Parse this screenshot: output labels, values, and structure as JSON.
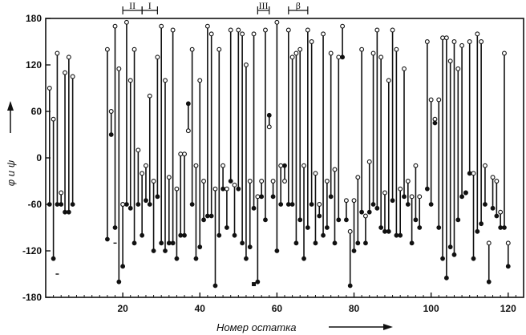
{
  "chart_data": {
    "type": "scatter",
    "title": "",
    "xlabel": "Номер остатка",
    "ylabel": "φ и ψ",
    "xlim": [
      0,
      124
    ],
    "ylim": [
      -180,
      180
    ],
    "x_ticks": [
      20,
      40,
      60,
      80,
      100,
      120
    ],
    "y_ticks": [
      180,
      120,
      60,
      0,
      -60,
      -120,
      -180
    ],
    "grid": false,
    "legend": "none",
    "series": [
      {
        "marker": "open circle",
        "values": []
      },
      {
        "marker": "filled circle",
        "values": []
      }
    ],
    "residues": [
      {
        "x": 1,
        "psi": 90,
        "phi": -60
      },
      {
        "x": 2,
        "psi": 50,
        "phi": -130
      },
      {
        "x": 3,
        "psi": 135,
        "phi": -60
      },
      {
        "x": 4,
        "psi": -45,
        "phi": -60
      },
      {
        "x": 5,
        "psi": 110,
        "phi": -70
      },
      {
        "x": 6,
        "psi": 130,
        "phi": -70
      },
      {
        "x": 7,
        "psi": 105,
        "phi": -60
      },
      {
        "x": 16,
        "psi": 140,
        "phi": -105
      },
      {
        "x": 17,
        "psi": 60,
        "phi": 30
      },
      {
        "x": 18,
        "psi": 170,
        "phi": -90
      },
      {
        "x": 19,
        "psi": 115,
        "phi": -160
      },
      {
        "x": 20,
        "psi": -60,
        "phi": -140
      },
      {
        "x": 21,
        "psi": 175,
        "phi": -60
      },
      {
        "x": 22,
        "psi": 100,
        "phi": -65
      },
      {
        "x": 23,
        "psi": 140,
        "phi": -110
      },
      {
        "x": 24,
        "psi": 10,
        "phi": -60
      },
      {
        "x": 25,
        "psi": -20,
        "phi": -100
      },
      {
        "x": 26,
        "psi": -10,
        "phi": -55
      },
      {
        "x": 27,
        "psi": 80,
        "phi": -60
      },
      {
        "x": 28,
        "psi": -30,
        "phi": -120
      },
      {
        "x": 29,
        "psi": 130,
        "phi": -50
      },
      {
        "x": 30,
        "psi": 170,
        "phi": -110
      },
      {
        "x": 31,
        "psi": 100,
        "phi": -120
      },
      {
        "x": 32,
        "psi": -25,
        "phi": -110
      },
      {
        "x": 33,
        "psi": 165,
        "phi": -110
      },
      {
        "x": 34,
        "psi": -40,
        "phi": -130
      },
      {
        "x": 35,
        "psi": 5,
        "phi": -100
      },
      {
        "x": 36,
        "psi": 5,
        "phi": -100
      },
      {
        "x": 37,
        "psi": 35,
        "phi": 70
      },
      {
        "x": 38,
        "psi": 140,
        "phi": -60
      },
      {
        "x": 39,
        "psi": -10,
        "phi": -130
      },
      {
        "x": 40,
        "psi": 100,
        "phi": -115
      },
      {
        "x": 41,
        "psi": -30,
        "phi": -80
      },
      {
        "x": 42,
        "psi": 170,
        "phi": -75
      },
      {
        "x": 43,
        "psi": 160,
        "phi": -75
      },
      {
        "x": 44,
        "psi": -40,
        "phi": -165
      },
      {
        "x": 45,
        "psi": 140,
        "phi": -100
      },
      {
        "x": 46,
        "psi": -10,
        "phi": -40
      },
      {
        "x": 47,
        "psi": -40,
        "phi": -90
      },
      {
        "x": 48,
        "psi": 165,
        "phi": -30
      },
      {
        "x": 49,
        "psi": -35,
        "phi": -100
      },
      {
        "x": 50,
        "psi": 165,
        "phi": -40
      },
      {
        "x": 51,
        "psi": 160,
        "phi": -110
      },
      {
        "x": 52,
        "psi": 120,
        "phi": -130
      },
      {
        "x": 53,
        "psi": -30,
        "phi": -115
      },
      {
        "x": 54,
        "psi": 160,
        "phi": -65
      },
      {
        "x": 55,
        "psi": -50,
        "phi": -160
      },
      {
        "x": 56,
        "psi": -30,
        "phi": -50
      },
      {
        "x": 57,
        "psi": 165,
        "phi": -80
      },
      {
        "x": 58,
        "psi": 40,
        "phi": 55
      },
      {
        "x": 59,
        "psi": -30,
        "phi": -50
      },
      {
        "x": 60,
        "psi": 175,
        "phi": -120
      },
      {
        "x": 61,
        "psi": -10,
        "phi": -60
      },
      {
        "x": 62,
        "psi": -30,
        "phi": -10
      },
      {
        "x": 63,
        "psi": 165,
        "phi": -60
      },
      {
        "x": 64,
        "psi": 130,
        "phi": -60
      },
      {
        "x": 65,
        "psi": 135,
        "phi": -110
      },
      {
        "x": 66,
        "psi": 140,
        "phi": -80
      },
      {
        "x": 67,
        "psi": -10,
        "phi": -130
      },
      {
        "x": 68,
        "psi": 165,
        "phi": -90
      },
      {
        "x": 69,
        "psi": 150,
        "phi": -60
      },
      {
        "x": 70,
        "psi": -20,
        "phi": -110
      },
      {
        "x": 71,
        "psi": -60,
        "phi": -75
      },
      {
        "x": 72,
        "psi": 160,
        "phi": -100
      },
      {
        "x": 73,
        "psi": -30,
        "phi": -90
      },
      {
        "x": 74,
        "psi": 135,
        "phi": -50
      },
      {
        "x": 75,
        "psi": -15,
        "phi": -110
      },
      {
        "x": 76,
        "psi": 130,
        "phi": -80
      },
      {
        "x": 77,
        "psi": 170,
        "phi": 130
      },
      {
        "x": 78,
        "psi": -55,
        "phi": -80
      },
      {
        "x": 79,
        "psi": -95,
        "phi": -165
      },
      {
        "x": 80,
        "psi": -55,
        "phi": -120
      },
      {
        "x": 81,
        "psi": -25,
        "phi": -110
      },
      {
        "x": 82,
        "psi": 140,
        "phi": -70
      },
      {
        "x": 83,
        "psi": -75,
        "phi": -110
      },
      {
        "x": 84,
        "psi": -5,
        "phi": -70
      },
      {
        "x": 85,
        "psi": 135,
        "phi": -60
      },
      {
        "x": 86,
        "psi": 165,
        "phi": -65
      },
      {
        "x": 87,
        "psi": 130,
        "phi": -90
      },
      {
        "x": 88,
        "psi": -45,
        "phi": -95
      },
      {
        "x": 89,
        "psi": 100,
        "phi": -95
      },
      {
        "x": 90,
        "psi": 165,
        "phi": -55
      },
      {
        "x": 91,
        "psi": 140,
        "phi": -100
      },
      {
        "x": 92,
        "psi": -40,
        "phi": -100
      },
      {
        "x": 93,
        "psi": 115,
        "phi": -50
      },
      {
        "x": 94,
        "psi": -30,
        "phi": -60
      },
      {
        "x": 95,
        "psi": -50,
        "phi": -110
      },
      {
        "x": 96,
        "psi": -10,
        "phi": -80
      },
      {
        "x": 97,
        "psi": -50,
        "phi": -90
      },
      {
        "x": 99,
        "psi": 150,
        "phi": -40
      },
      {
        "x": 100,
        "psi": 75,
        "phi": -60
      },
      {
        "x": 101,
        "psi": 50,
        "phi": 45
      },
      {
        "x": 102,
        "psi": 75,
        "phi": -90
      },
      {
        "x": 103,
        "psi": 155,
        "phi": -130
      },
      {
        "x": 104,
        "psi": 155,
        "phi": -155
      },
      {
        "x": 105,
        "psi": 125,
        "phi": -115
      },
      {
        "x": 106,
        "psi": 150,
        "phi": -125
      },
      {
        "x": 107,
        "psi": 115,
        "phi": -80
      },
      {
        "x": 108,
        "psi": 145,
        "phi": -50
      },
      {
        "x": 109,
        "psi": -45,
        "phi": -45
      },
      {
        "x": 110,
        "psi": 150,
        "phi": -20
      },
      {
        "x": 111,
        "psi": -20,
        "phi": -130
      },
      {
        "x": 112,
        "psi": 160,
        "phi": -95
      },
      {
        "x": 113,
        "psi": 150,
        "phi": -85
      },
      {
        "x": 114,
        "psi": -10,
        "phi": -60
      },
      {
        "x": 115,
        "psi": -110,
        "phi": -160
      },
      {
        "x": 116,
        "psi": -25,
        "phi": -65
      },
      {
        "x": 117,
        "psi": -30,
        "phi": -75
      },
      {
        "x": 118,
        "psi": -70,
        "phi": -90
      },
      {
        "x": 119,
        "psi": 135,
        "phi": -90
      },
      {
        "x": 120,
        "psi": -110,
        "phi": -140
      }
    ],
    "regions": [
      {
        "label": "II",
        "from": 20,
        "to": 25
      },
      {
        "label": "I",
        "from": 25,
        "to": 29
      },
      {
        "label": "III",
        "from": 55,
        "to": 58
      },
      {
        "label": "β",
        "from": 63,
        "to": 68
      }
    ],
    "stray_marks": [
      {
        "x": 54,
        "y": -163,
        "marker": "filled square"
      },
      {
        "x": 18,
        "y": -110,
        "marker": "dash"
      },
      {
        "x": 3,
        "y": -150,
        "marker": "dash"
      }
    ]
  }
}
